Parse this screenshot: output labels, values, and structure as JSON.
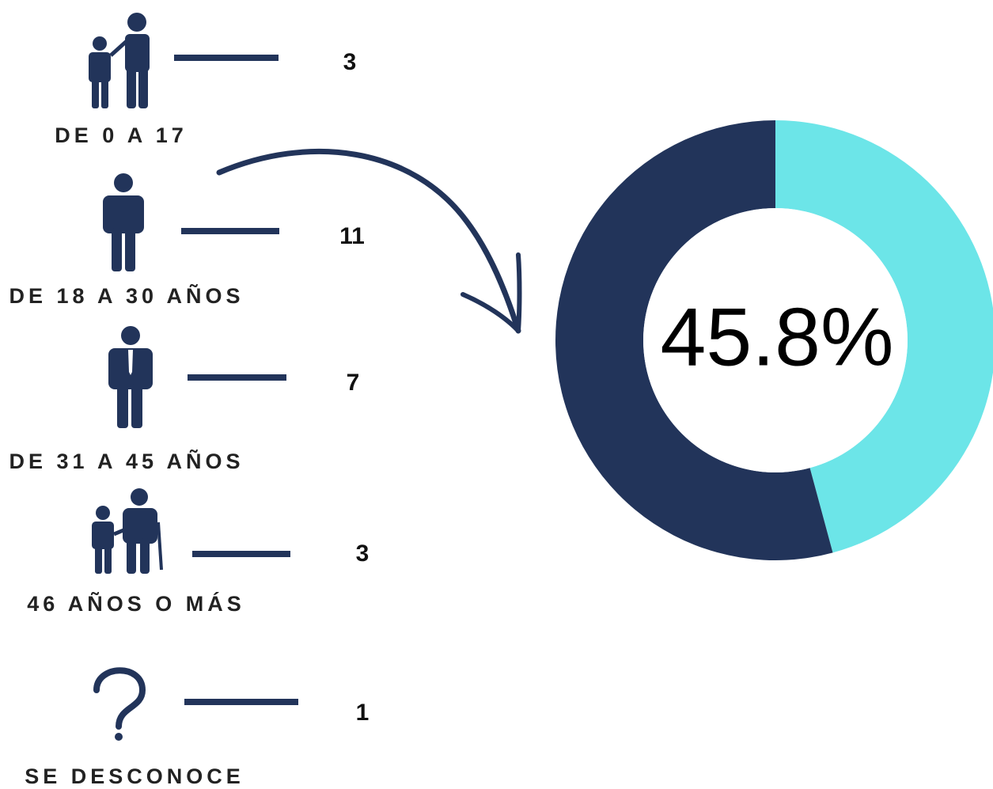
{
  "chart_data": [
    {
      "type": "list",
      "categories": [
        "DE 0 A 17",
        "DE 18 A 30 AÑOS",
        "DE 31 A 45 AÑOS",
        "46 AÑOS O MÁS",
        "SE DESCONOCE"
      ],
      "values": [
        3,
        11,
        7,
        3,
        1
      ],
      "color": "#22345a"
    },
    {
      "type": "donut",
      "values": [
        45.8,
        54.2
      ],
      "value_labels": [
        "45.8%",
        null
      ],
      "colors": [
        "#6ce5e8",
        "#22345a"
      ]
    }
  ]
}
